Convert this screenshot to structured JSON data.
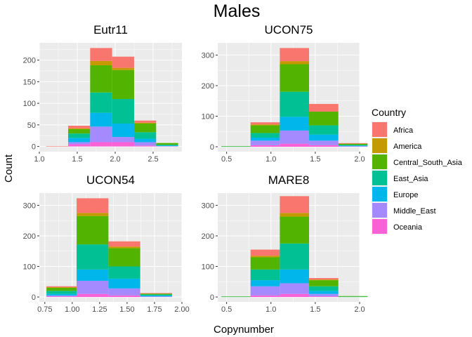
{
  "chart_data": {
    "type": "bar",
    "title": "Males",
    "xlabel": "Copynumber",
    "ylabel": "Count",
    "grid": true,
    "stacked": true,
    "legend": {
      "title": "Country",
      "placement": "right",
      "entries": [
        "Africa",
        "America",
        "Central_South_Asia",
        "East_Asia",
        "Europe",
        "Middle_East",
        "Oceania"
      ]
    },
    "colors": {
      "Africa": "#F8766D",
      "America": "#C49A00",
      "Central_South_Asia": "#53B400",
      "East_Asia": "#00C094",
      "Europe": "#00B6EB",
      "Middle_East": "#A58AFF",
      "Oceania": "#FB61D7"
    },
    "panels": [
      {
        "title": "Eutr11",
        "xlim": [
          1.0,
          2.88
        ],
        "ylim": [
          -12,
          240
        ],
        "xticks": [
          1.0,
          1.5,
          2.0,
          2.5
        ],
        "xtick_labels": [
          "1.0",
          "1.5",
          "2.0",
          "2.5"
        ],
        "yticks": [
          0,
          50,
          100,
          150,
          200
        ],
        "ytick_labels": [
          "0",
          "50",
          "100",
          "150",
          "200"
        ],
        "bins": [
          {
            "x0": 1.09,
            "x1": 1.38,
            "values": {
              "Oceania": 0,
              "Middle_East": 0,
              "Europe": 0,
              "East_Asia": 0,
              "Central_South_Asia": 0,
              "America": 0,
              "Africa": 1
            }
          },
          {
            "x0": 1.38,
            "x1": 1.67,
            "values": {
              "Oceania": 5,
              "Middle_East": 5,
              "Europe": 10,
              "East_Asia": 10,
              "Central_South_Asia": 10,
              "America": 2,
              "Africa": 6
            }
          },
          {
            "x0": 1.67,
            "x1": 1.96,
            "values": {
              "Oceania": 10,
              "Middle_East": 36,
              "Europe": 32,
              "East_Asia": 47,
              "Central_South_Asia": 63,
              "America": 10,
              "Africa": 30
            }
          },
          {
            "x0": 1.96,
            "x1": 2.25,
            "values": {
              "Oceania": 10,
              "Middle_East": 12,
              "Europe": 31,
              "East_Asia": 57,
              "Central_South_Asia": 67,
              "America": 5,
              "Africa": 26
            }
          },
          {
            "x0": 2.25,
            "x1": 2.54,
            "values": {
              "Oceania": 2,
              "Middle_East": 8,
              "Europe": 8,
              "East_Asia": 15,
              "Central_South_Asia": 20,
              "America": 2,
              "Africa": 5
            }
          },
          {
            "x0": 2.54,
            "x1": 2.83,
            "values": {
              "Oceania": 0,
              "Middle_East": 1,
              "Europe": 1,
              "East_Asia": 2,
              "Central_South_Asia": 4,
              "America": 0,
              "Africa": 0
            }
          }
        ]
      },
      {
        "title": "UCON75",
        "xlim": [
          0.4,
          2.0
        ],
        "ylim": [
          -16,
          340
        ],
        "xticks": [
          0.5,
          1.0,
          1.5,
          2.0
        ],
        "xtick_labels": [
          "0.5",
          "1.0",
          "1.5",
          "2.0"
        ],
        "yticks": [
          0,
          100,
          200,
          300
        ],
        "ytick_labels": [
          "0",
          "100",
          "200",
          "300"
        ],
        "bins": [
          {
            "x0": 0.44,
            "x1": 0.77,
            "values": {
              "Oceania": 0,
              "Middle_East": 0,
              "Europe": 0,
              "East_Asia": 1,
              "Central_South_Asia": 1,
              "America": 0,
              "Africa": 0
            }
          },
          {
            "x0": 0.77,
            "x1": 1.1,
            "values": {
              "Oceania": 5,
              "Middle_East": 15,
              "Europe": 10,
              "East_Asia": 15,
              "Central_South_Asia": 25,
              "America": 3,
              "Africa": 7
            }
          },
          {
            "x0": 1.1,
            "x1": 1.43,
            "values": {
              "Oceania": 10,
              "Middle_East": 43,
              "Europe": 45,
              "East_Asia": 82,
              "Central_South_Asia": 90,
              "America": 10,
              "Africa": 43
            }
          },
          {
            "x0": 1.43,
            "x1": 1.76,
            "values": {
              "Oceania": 5,
              "Middle_East": 15,
              "Europe": 20,
              "East_Asia": 30,
              "Central_South_Asia": 45,
              "America": 0,
              "Africa": 25
            }
          },
          {
            "x0": 1.76,
            "x1": 2.09,
            "values": {
              "Oceania": 0,
              "Middle_East": 2,
              "Europe": 2,
              "East_Asia": 2,
              "Central_South_Asia": 4,
              "America": 0,
              "Africa": 2
            }
          }
        ]
      },
      {
        "title": "UCON54",
        "xlim": [
          0.7,
          2.0
        ],
        "ylim": [
          -16,
          340
        ],
        "xticks": [
          0.75,
          1.0,
          1.25,
          1.5,
          1.75,
          2.0
        ],
        "xtick_labels": [
          "0.75",
          "1.00",
          "1.25",
          "1.50",
          "1.75",
          "2.00"
        ],
        "yticks": [
          0,
          100,
          200,
          300
        ],
        "ytick_labels": [
          "0",
          "100",
          "200",
          "300"
        ],
        "bins": [
          {
            "x0": 0.765,
            "x1": 1.04,
            "values": {
              "Oceania": 2,
              "Middle_East": 3,
              "Europe": 5,
              "East_Asia": 10,
              "Central_South_Asia": 10,
              "America": 2,
              "Africa": 3
            }
          },
          {
            "x0": 1.04,
            "x1": 1.33,
            "values": {
              "Oceania": 10,
              "Middle_East": 43,
              "Europe": 37,
              "East_Asia": 82,
              "Central_South_Asia": 93,
              "America": 10,
              "Africa": 48
            }
          },
          {
            "x0": 1.33,
            "x1": 1.62,
            "values": {
              "Oceania": 5,
              "Middle_East": 23,
              "Europe": 32,
              "East_Asia": 40,
              "Central_South_Asia": 60,
              "America": 5,
              "Africa": 17
            }
          },
          {
            "x0": 1.62,
            "x1": 1.91,
            "values": {
              "Oceania": 0,
              "Middle_East": 2,
              "Europe": 3,
              "East_Asia": 3,
              "Central_South_Asia": 3,
              "America": 0,
              "Africa": 2
            }
          }
        ]
      },
      {
        "title": "MARE8",
        "xlim": [
          0.4,
          2.0
        ],
        "ylim": [
          -16,
          340
        ],
        "xticks": [
          0.5,
          1.0,
          1.5,
          2.0
        ],
        "xtick_labels": [
          "0.5",
          "1.0",
          "1.5",
          "2.0"
        ],
        "yticks": [
          0,
          100,
          200,
          300
        ],
        "ytick_labels": [
          "0",
          "100",
          "200",
          "300"
        ],
        "bins": [
          {
            "x0": 0.44,
            "x1": 0.77,
            "values": {
              "Oceania": 0,
              "Middle_East": 0,
              "Europe": 0,
              "East_Asia": 1,
              "Central_South_Asia": 1,
              "America": 0,
              "Africa": 0
            }
          },
          {
            "x0": 0.77,
            "x1": 1.1,
            "values": {
              "Oceania": 5,
              "Middle_East": 30,
              "Europe": 20,
              "East_Asia": 35,
              "Central_South_Asia": 40,
              "America": 5,
              "Africa": 20
            }
          },
          {
            "x0": 1.1,
            "x1": 1.43,
            "values": {
              "Oceania": 10,
              "Middle_East": 35,
              "Europe": 45,
              "East_Asia": 85,
              "Central_South_Asia": 88,
              "America": 12,
              "Africa": 55
            }
          },
          {
            "x0": 1.43,
            "x1": 1.76,
            "values": {
              "Oceania": 2,
              "Middle_East": 8,
              "Europe": 10,
              "East_Asia": 15,
              "Central_South_Asia": 20,
              "America": 2,
              "Africa": 5
            }
          },
          {
            "x0": 1.76,
            "x1": 2.09,
            "values": {
              "Oceania": 0,
              "Middle_East": 0,
              "Europe": 0,
              "East_Asia": 1,
              "Central_South_Asia": 2,
              "America": 0,
              "Africa": 0
            }
          }
        ]
      }
    ]
  }
}
